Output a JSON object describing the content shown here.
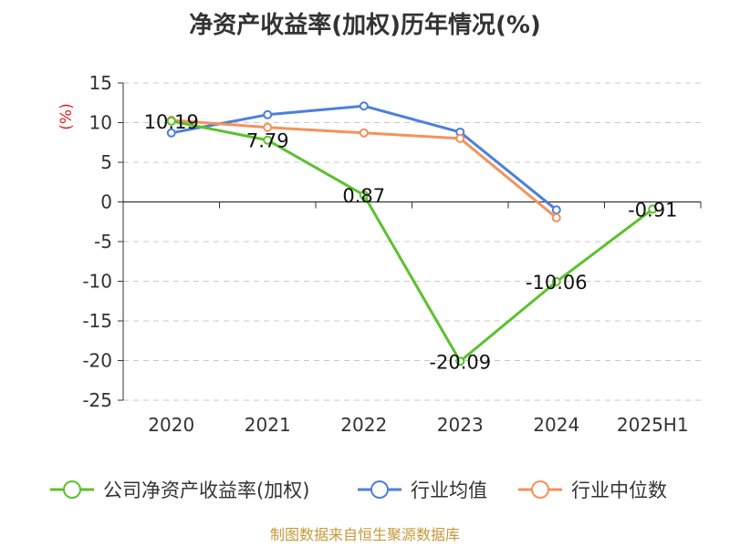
{
  "chart_data": {
    "type": "line",
    "title": "净资产收益率(加权)历年情况(%)",
    "ylabel": "(%)",
    "categories": [
      "2020",
      "2021",
      "2022",
      "2023",
      "2024",
      "2025H1"
    ],
    "ylim": [
      -25,
      15
    ],
    "yticks": [
      15,
      10,
      5,
      0,
      -5,
      -10,
      -15,
      -20,
      -25
    ],
    "grid": true,
    "legend_position": "bottom",
    "series": [
      {
        "name": "公司净资产收益率(加权)",
        "color": "#5cc02e",
        "values": [
          10.19,
          7.79,
          0.87,
          -20.09,
          -10.06,
          -0.91
        ],
        "labels": [
          "10.19",
          "7.79",
          "0.87",
          "-20.09",
          "-10.06",
          "-0.91"
        ]
      },
      {
        "name": "行业均值",
        "color": "#4d7fdb",
        "values": [
          8.7,
          11.0,
          12.1,
          8.8,
          -1.0,
          null
        ]
      },
      {
        "name": "行业中位数",
        "color": "#f4925a",
        "values": [
          10.3,
          9.4,
          8.7,
          8.0,
          -2.0,
          null
        ]
      }
    ],
    "ylabel_color": "#e02020"
  },
  "source": {
    "text": "制图数据来自恒生聚源数据库",
    "color": "#c49a3a"
  }
}
